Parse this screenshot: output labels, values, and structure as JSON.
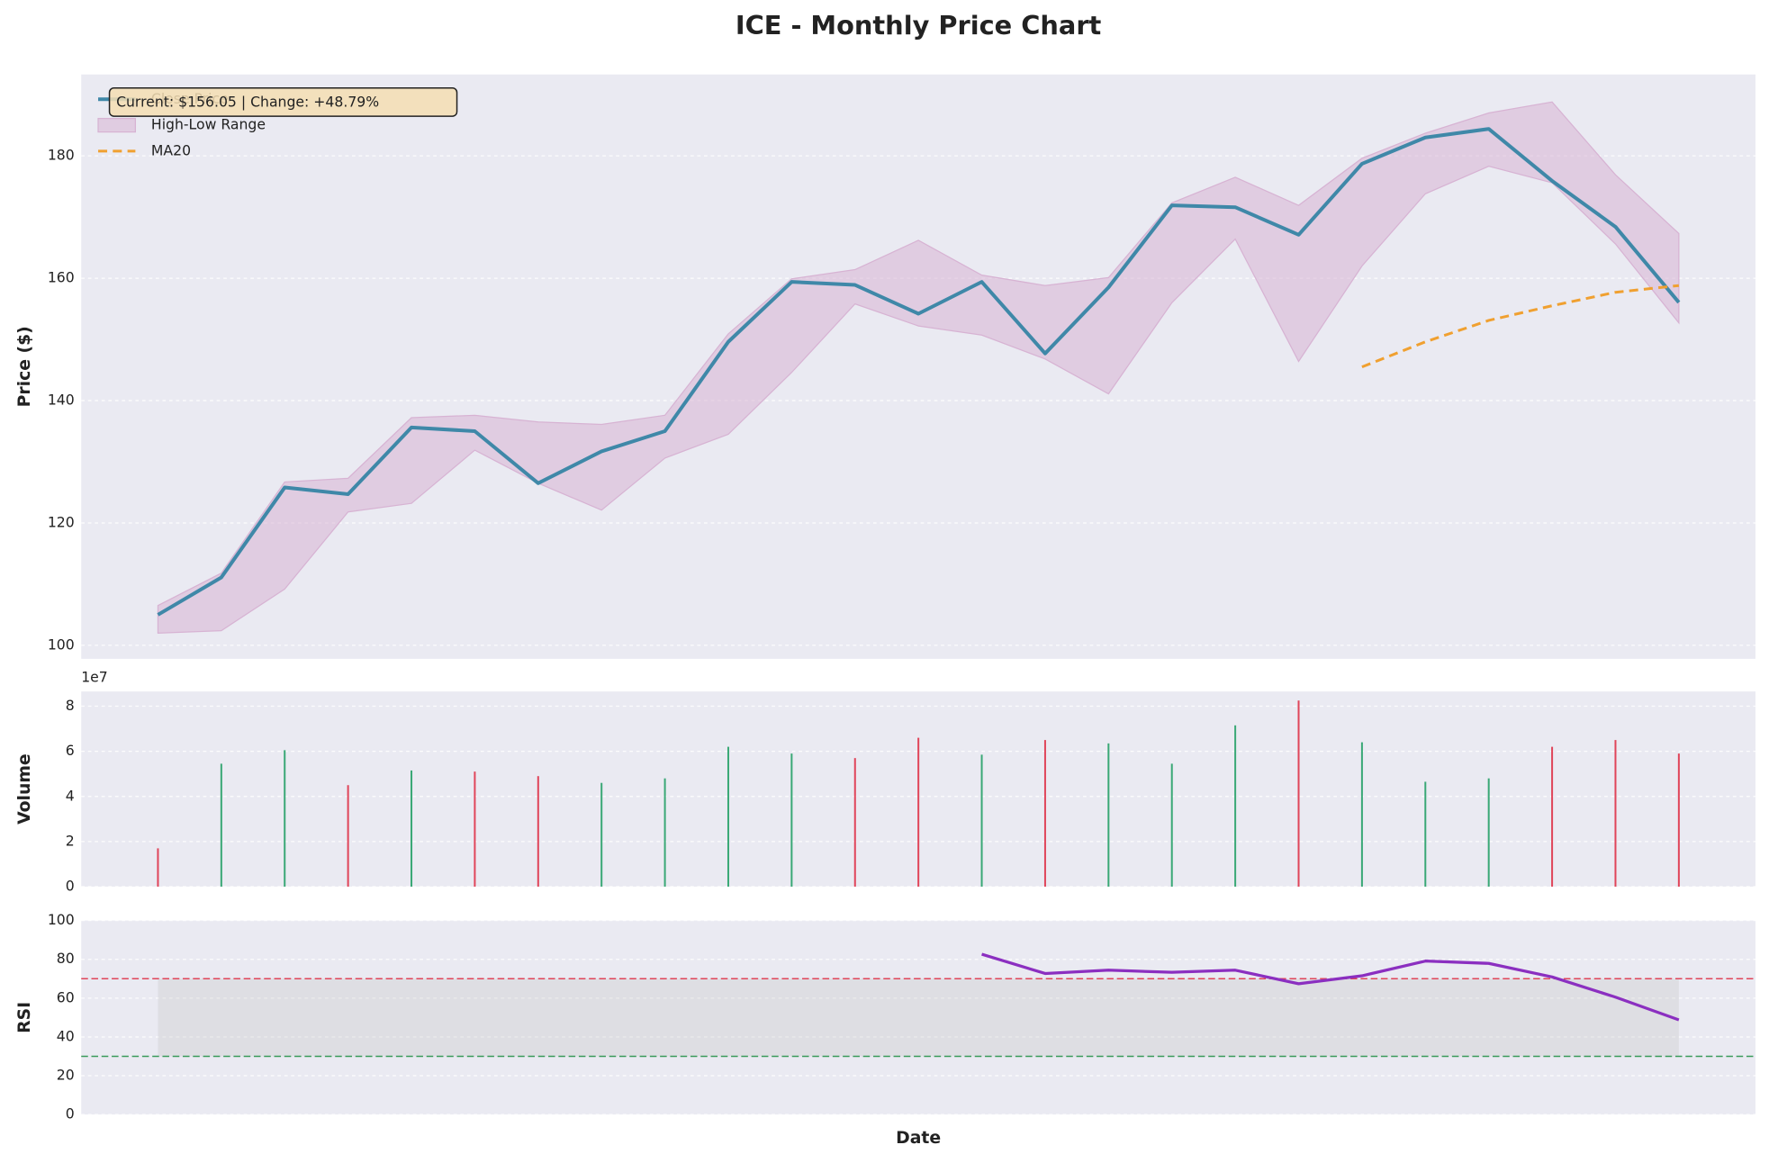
{
  "chart_data": [
    {
      "type": "line",
      "title": "ICE - Monthly Price Chart",
      "y_label": "Price ($)",
      "categories": [
        null,
        null,
        null,
        null,
        null,
        null,
        null,
        null,
        null,
        null,
        null,
        null,
        null,
        null,
        null,
        null,
        null,
        null,
        null,
        null,
        null,
        null,
        null,
        null,
        null
      ],
      "ylim": [
        97.8,
        193.3
      ],
      "yticks": [
        100,
        120,
        140,
        160,
        180
      ],
      "grid": true,
      "legend": "upper left",
      "annotation": "Current: $156.05 | Change: +48.79%",
      "range": {
        "name": "High-Low Range",
        "color": "#d7b3d3",
        "high": [
          106.5,
          111.8,
          126.7,
          127.3,
          137.2,
          137.6,
          136.5,
          136.1,
          137.6,
          150.9,
          159.9,
          161.4,
          166.2,
          160.5,
          158.8,
          160.1,
          172.3,
          176.5,
          171.9,
          179.6,
          183.7,
          187.0,
          188.8,
          176.9,
          167.3
        ],
        "low": [
          102.0,
          102.4,
          109.2,
          121.8,
          123.2,
          131.9,
          126.5,
          122.1,
          130.6,
          134.5,
          144.6,
          155.8,
          152.2,
          150.7,
          146.8,
          141.1,
          156.0,
          166.4,
          146.4,
          162.0,
          173.8,
          178.3,
          175.6,
          165.6,
          152.7
        ]
      },
      "series": [
        {
          "name": "Close Price",
          "color": "#3f88a8",
          "width": 3.2,
          "dash": "",
          "values": [
            105.0,
            111.1,
            125.8,
            124.7,
            135.6,
            135.0,
            126.5,
            131.7,
            135.0,
            149.6,
            159.4,
            158.9,
            154.2,
            159.4,
            147.7,
            158.5,
            171.9,
            171.6,
            167.1,
            178.7,
            183.0,
            184.4,
            175.9,
            168.4,
            156.05
          ]
        },
        {
          "name": "MA20",
          "color": "#f0a030",
          "width": 2.4,
          "dash": "8 5",
          "values": [
            null,
            null,
            null,
            null,
            null,
            null,
            null,
            null,
            null,
            null,
            null,
            null,
            null,
            null,
            null,
            null,
            null,
            null,
            null,
            145.5,
            149.6,
            153.1,
            155.5,
            157.7,
            158.8
          ]
        }
      ]
    },
    {
      "type": "bar",
      "y_label": "Volume",
      "scale_label": "1e7",
      "ylim": [
        0,
        8.65
      ],
      "yticks": [
        0,
        2,
        4,
        6,
        8
      ],
      "grid": true,
      "values": [
        1.7,
        5.45,
        6.05,
        4.5,
        5.15,
        5.1,
        4.9,
        4.6,
        4.8,
        6.2,
        5.9,
        5.7,
        6.6,
        5.85,
        6.5,
        6.35,
        5.45,
        7.15,
        8.25,
        6.4,
        4.65,
        4.8,
        6.2,
        6.5,
        5.9
      ],
      "colors": [
        "#e0455a",
        "#3aa876",
        "#3aa876",
        "#e0455a",
        "#3aa876",
        "#e0455a",
        "#e0455a",
        "#3aa876",
        "#3aa876",
        "#3aa876",
        "#3aa876",
        "#e0455a",
        "#e0455a",
        "#3aa876",
        "#e0455a",
        "#3aa876",
        "#3aa876",
        "#3aa876",
        "#e0455a",
        "#3aa876",
        "#3aa876",
        "#3aa876",
        "#e0455a",
        "#e0455a",
        "#e0455a"
      ]
    },
    {
      "type": "line",
      "y_label": "RSI",
      "x_label": "Date",
      "ylim": [
        0,
        100
      ],
      "yticks": [
        0,
        20,
        40,
        60,
        80,
        100
      ],
      "grid": true,
      "hlines": [
        {
          "value": 70,
          "color": "#e0455a"
        },
        {
          "value": 30,
          "color": "#3a9a5a"
        }
      ],
      "series": [
        {
          "color": "#8b2fc0",
          "width": 2.6,
          "dash": "",
          "values": [
            null,
            null,
            null,
            null,
            null,
            null,
            null,
            null,
            null,
            null,
            null,
            null,
            null,
            82.6,
            72.7,
            74.4,
            73.3,
            74.4,
            67.4,
            71.5,
            79.1,
            77.9,
            70.9,
            60.5,
            48.8
          ]
        }
      ]
    }
  ]
}
